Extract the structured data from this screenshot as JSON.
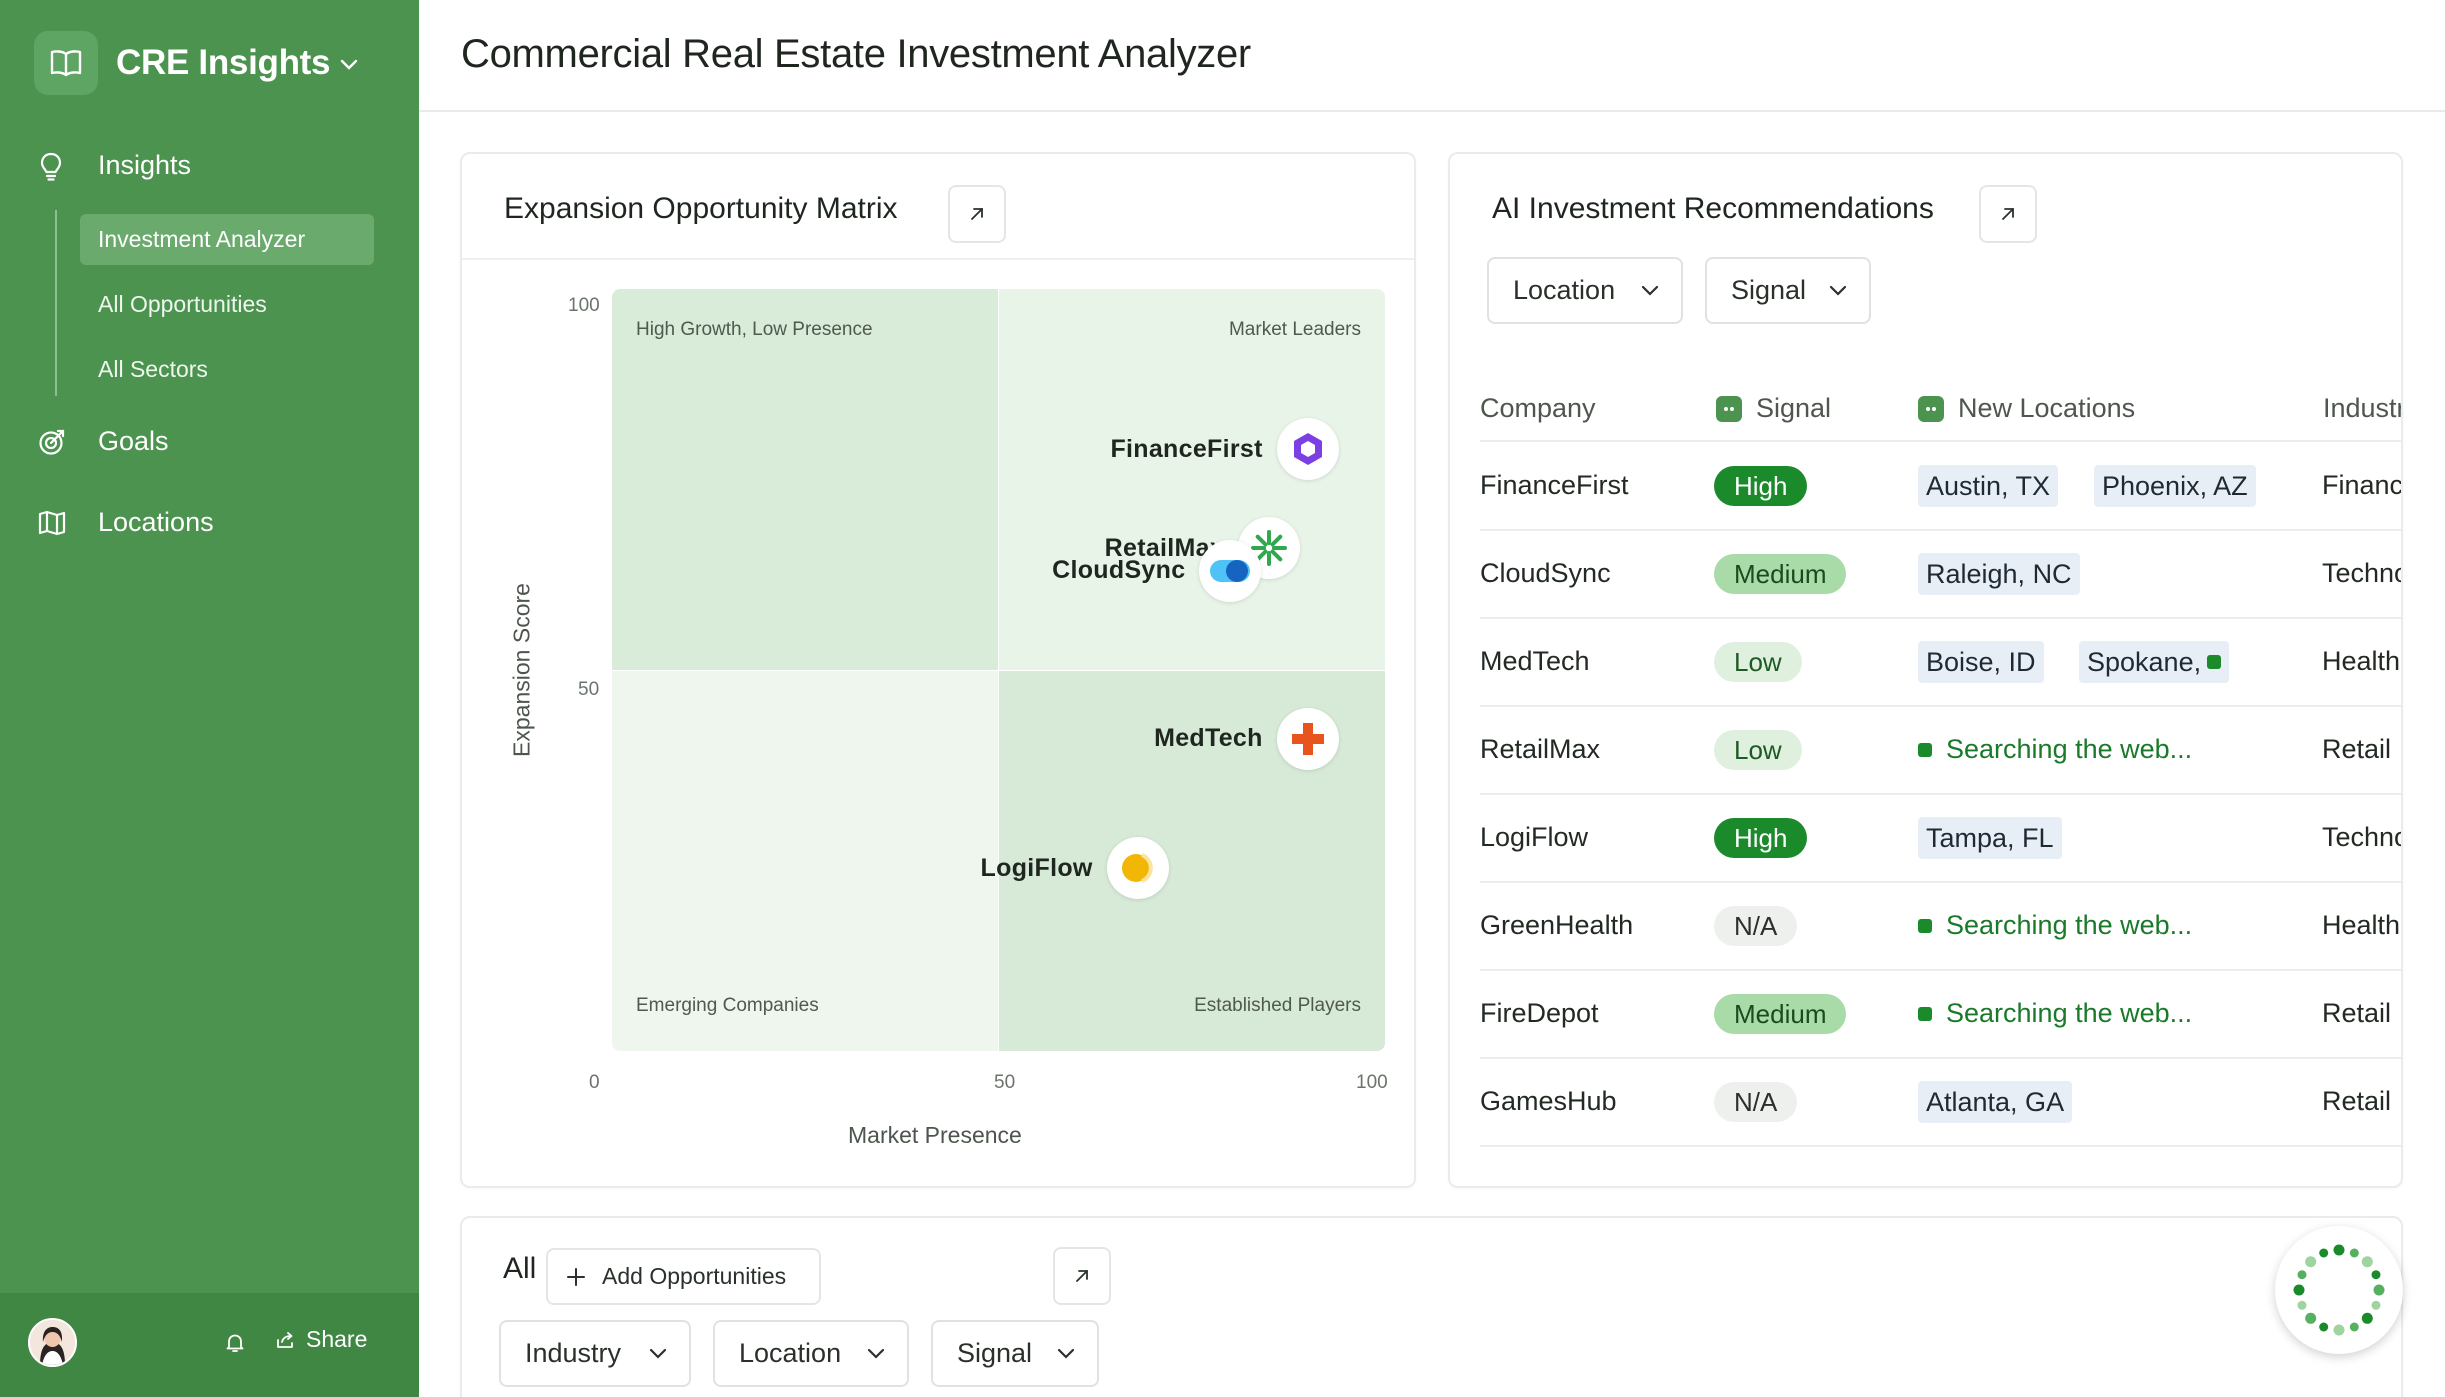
{
  "sidebar": {
    "brand": "CRE Insights",
    "nav": [
      {
        "label": "Insights",
        "icon": "lightbulb-icon"
      },
      {
        "label": "Goals",
        "icon": "target-icon"
      },
      {
        "label": "Locations",
        "icon": "map-icon"
      }
    ],
    "sub_items": [
      "Investment Analyzer",
      "All Opportunities",
      "All Sectors"
    ],
    "footer": {
      "share": "Share"
    }
  },
  "header": {
    "title": "Commercial Real Estate Investment Analyzer"
  },
  "matrix": {
    "title": "Expansion Opportunity Matrix",
    "quadrants": [
      "High Growth, Low Presence",
      "Market Leaders",
      "Emerging Companies",
      "Established Players"
    ],
    "y_ticks": [
      "100",
      "50"
    ],
    "x_ticks": [
      "0",
      "50",
      "100"
    ],
    "xlabel": "Market Presence",
    "ylabel": "Expansion Score"
  },
  "chart_data": {
    "type": "scatter",
    "xlabel": "Market Presence",
    "ylabel": "Expansion Score",
    "xlim": [
      0,
      100
    ],
    "ylim": [
      0,
      100
    ],
    "points": [
      {
        "label": "FinanceFirst",
        "x": 90,
        "y": 79,
        "color": "#7b3fe4"
      },
      {
        "label": "RetailMax",
        "x": 85,
        "y": 66,
        "color": "#2fa84f"
      },
      {
        "label": "CloudSync",
        "x": 80,
        "y": 63,
        "color": "#1565c0"
      },
      {
        "label": "MedTech",
        "x": 90,
        "y": 41,
        "color": "#e8541e"
      },
      {
        "label": "LogiFlow",
        "x": 68,
        "y": 24,
        "color": "#f2b705"
      }
    ]
  },
  "recommendations": {
    "title": "AI Investment Recommendations",
    "filters": [
      "Location",
      "Signal"
    ],
    "columns": [
      "Company",
      "Signal",
      "New Locations",
      "Industr"
    ],
    "rows": [
      {
        "company": "FinanceFirst",
        "signal": "High",
        "level": "high",
        "locations": [
          "Austin, TX",
          "Phoenix, AZ"
        ],
        "searching": "",
        "industry": "Financ"
      },
      {
        "company": "CloudSync",
        "signal": "Medium",
        "level": "medium",
        "locations": [
          "Raleigh, NC"
        ],
        "searching": "",
        "industry": "Techno"
      },
      {
        "company": "MedTech",
        "signal": "Low",
        "level": "low",
        "locations": [
          "Boise, ID",
          "Spokane,"
        ],
        "searching": "",
        "industry": "Health"
      },
      {
        "company": "RetailMax",
        "signal": "Low",
        "level": "low",
        "locations": [],
        "searching": "Searching the web...",
        "industry": "Retail"
      },
      {
        "company": "LogiFlow",
        "signal": "High",
        "level": "high",
        "locations": [
          "Tampa, FL"
        ],
        "searching": "",
        "industry": "Techno"
      },
      {
        "company": "GreenHealth",
        "signal": "N/A",
        "level": "na",
        "locations": [],
        "searching": "Searching the web...",
        "industry": "Health"
      },
      {
        "company": "FireDepot",
        "signal": "Medium",
        "level": "medium",
        "locations": [],
        "searching": "Searching the web...",
        "industry": "Retail"
      },
      {
        "company": "GamesHub",
        "signal": "N/A",
        "level": "na",
        "locations": [
          "Atlanta, GA"
        ],
        "searching": "",
        "industry": "Retail"
      }
    ]
  },
  "bottom": {
    "title": "All",
    "add_label": "Add Opportunities",
    "filters": [
      "Industry",
      "Location",
      "Signal"
    ]
  }
}
